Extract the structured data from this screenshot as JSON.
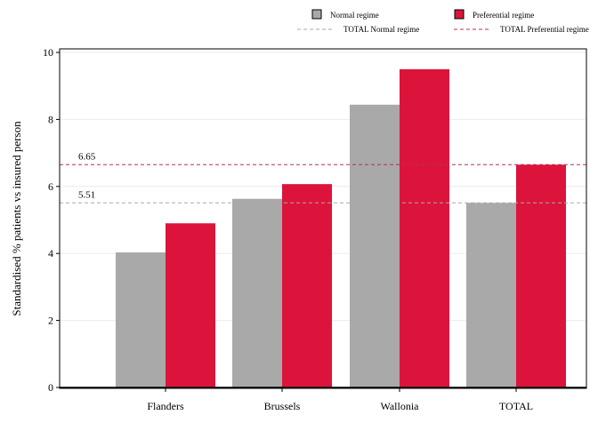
{
  "chart_data": {
    "type": "bar",
    "categories": [
      "Flanders",
      "Brussels",
      "Wallonia",
      "TOTAL"
    ],
    "series": [
      {
        "name": "Normal regime",
        "values": [
          4.03,
          5.63,
          8.44,
          5.51
        ],
        "color": "#a9a9a9"
      },
      {
        "name": "Preferential regime",
        "values": [
          4.9,
          6.07,
          9.5,
          6.65
        ],
        "color": "#dc143c"
      }
    ],
    "reference_lines": [
      {
        "name": "TOTAL Normal regime",
        "value": 5.51,
        "label": "5.51",
        "color": "#a9a9a9",
        "style": "dashed"
      },
      {
        "name": "TOTAL Preferential regime",
        "value": 6.65,
        "label": "6.65",
        "color": "#b5305a",
        "style": "dashed"
      }
    ],
    "ylabel": "Standardised % patients vs insured person",
    "ylim": [
      0,
      10
    ],
    "yticks": [
      "0",
      "2",
      "4",
      "6",
      "8",
      "10"
    ],
    "grid": true,
    "legend_position": "top-right"
  }
}
